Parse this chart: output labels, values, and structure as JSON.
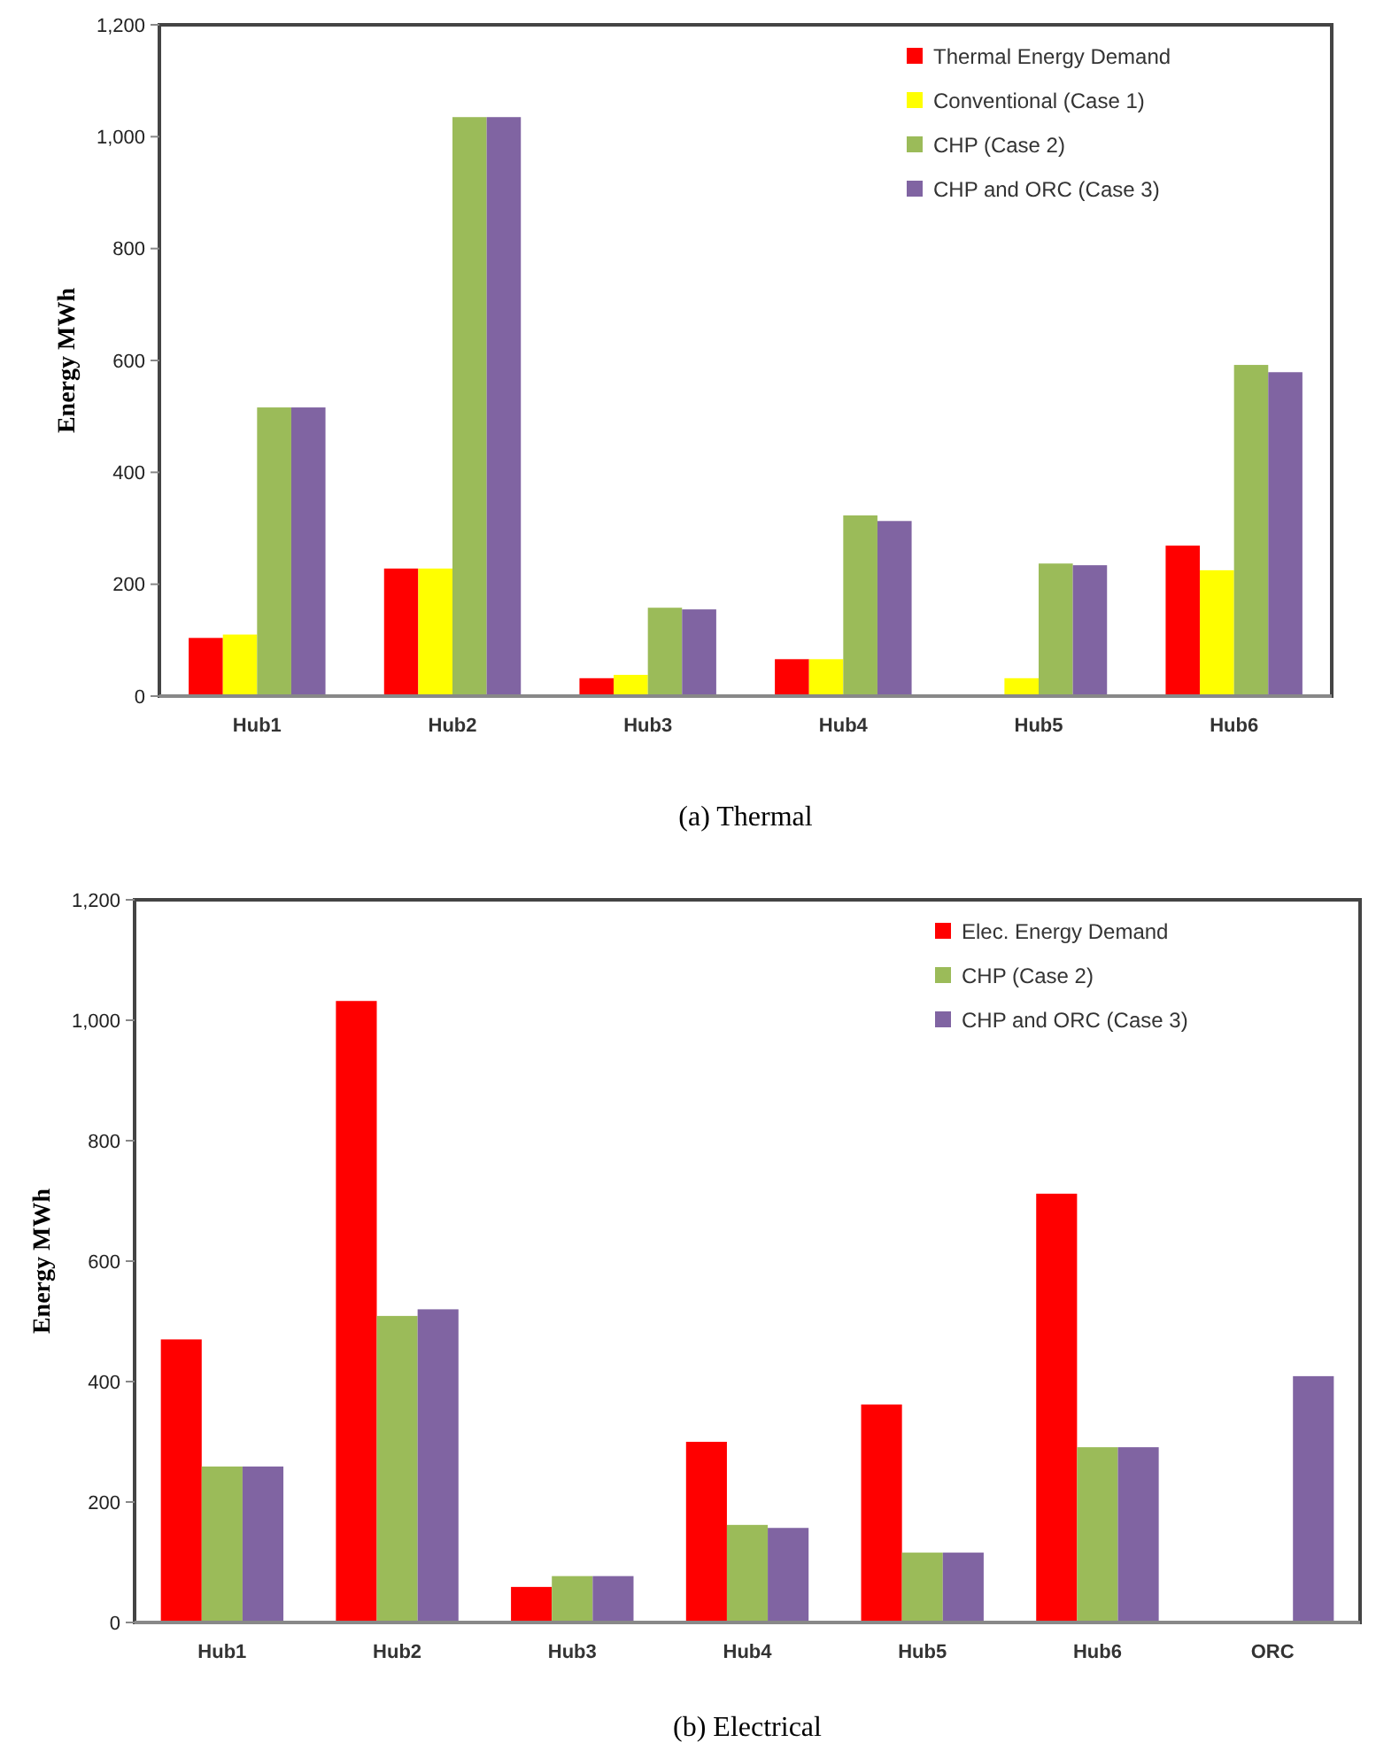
{
  "chart_data": [
    {
      "type": "bar",
      "title": "(a) Thermal",
      "ylabel": "Energy MWh",
      "categories": [
        "Hub1",
        "Hub2",
        "Hub3",
        "Hub4",
        "Hub5",
        "Hub6"
      ],
      "series": [
        {
          "name": "Thermal Energy Demand",
          "color": "#ff0000",
          "values": [
            104,
            228,
            32,
            66,
            0,
            269
          ]
        },
        {
          "name": "Conventional (Case 1)",
          "color": "#ffff00",
          "values": [
            110,
            228,
            38,
            66,
            32,
            225
          ]
        },
        {
          "name": "CHP (Case 2)",
          "color": "#9bbb59",
          "values": [
            516,
            1035,
            158,
            323,
            237,
            592
          ]
        },
        {
          "name": "CHP and ORC  (Case 3)",
          "color": "#8064a2",
          "values": [
            516,
            1035,
            155,
            313,
            234,
            579
          ]
        }
      ],
      "ylim": [
        0,
        1200
      ],
      "yticks": [
        0,
        {
          "value": 200,
          "label": "200"
        },
        {
          "value": 400,
          "label": "400"
        },
        {
          "value": 600,
          "label": "600"
        },
        {
          "value": 800,
          "label": "800"
        },
        {
          "value": 1000,
          "label": "1,000"
        },
        {
          "value": 1200,
          "label": "1,200"
        }
      ],
      "grid": false,
      "legend": "top right"
    },
    {
      "type": "bar",
      "title": "(b) Electrical",
      "ylabel": "Energy MWh",
      "categories": [
        "Hub1",
        "Hub2",
        "Hub3",
        "Hub4",
        "Hub5",
        "Hub6",
        "ORC"
      ],
      "series": [
        {
          "name": "Elec. Energy Demand",
          "color": "#ff0000",
          "values": [
            470,
            1032,
            59,
            300,
            362,
            712,
            null
          ]
        },
        {
          "name": "CHP (Case 2)",
          "color": "#9bbb59",
          "values": [
            259,
            509,
            77,
            162,
            116,
            291,
            null
          ]
        },
        {
          "name": "CHP and ORC  (Case 3)",
          "color": "#8064a2",
          "values": [
            259,
            520,
            77,
            157,
            116,
            291,
            409
          ]
        }
      ],
      "ylim": [
        0,
        1200
      ],
      "yticks": [
        0,
        {
          "value": 200,
          "label": "200"
        },
        {
          "value": 400,
          "label": "400"
        },
        {
          "value": 600,
          "label": "600"
        },
        {
          "value": 800,
          "label": "800"
        },
        {
          "value": 1000,
          "label": "1,000"
        },
        {
          "value": 1200,
          "label": "1,200"
        }
      ],
      "grid": false,
      "legend": "top right"
    }
  ]
}
